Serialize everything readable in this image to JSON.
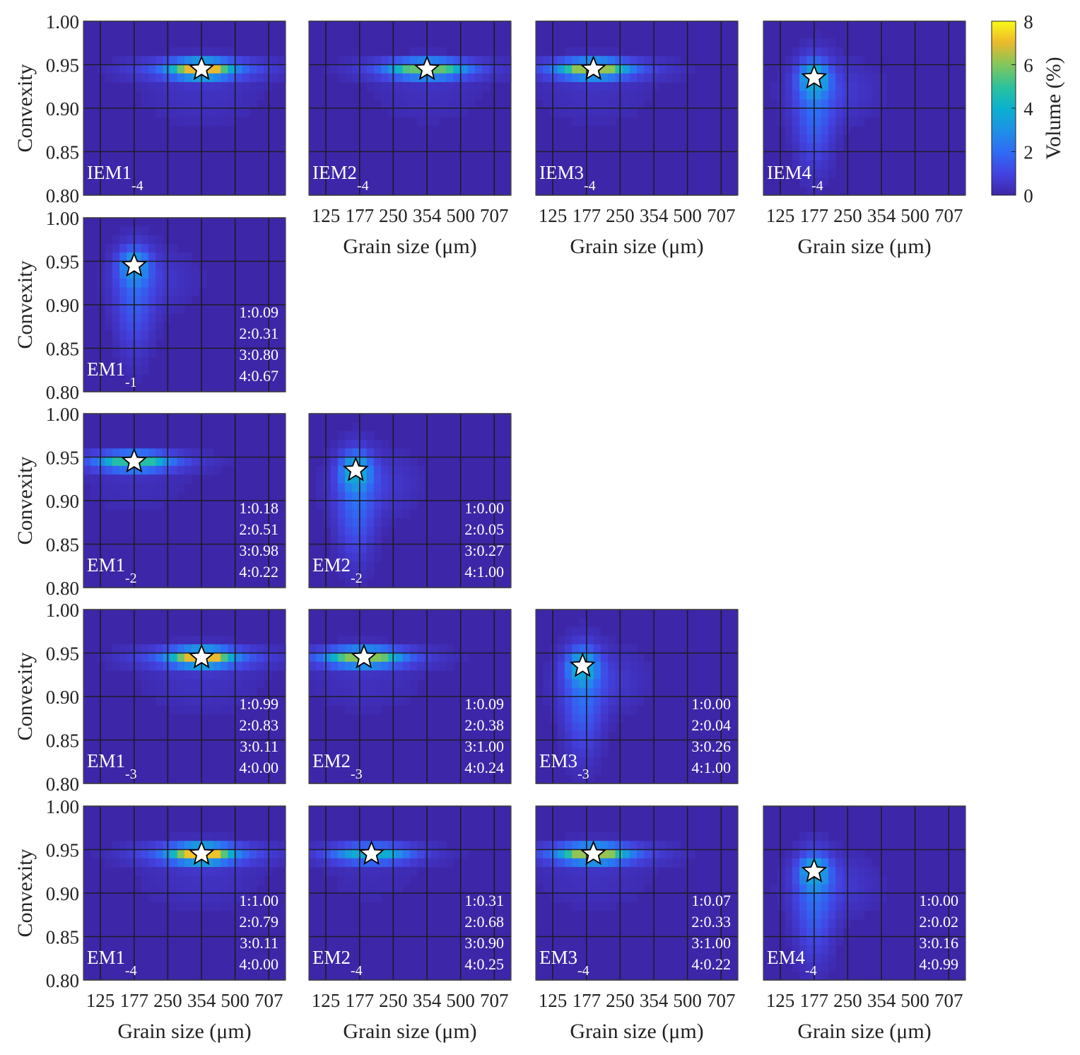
{
  "chart_data": {
    "type": "heatmap",
    "layout_note_rows": 5,
    "x_ticks": [
      "125",
      "177",
      "250",
      "354",
      "500",
      "707"
    ],
    "x_tick_values": [
      125,
      177,
      250,
      354,
      500,
      707
    ],
    "x_scale": "log",
    "xlim": [
      105,
      840
    ],
    "y_ticks": [
      "1.00",
      "0.95",
      "0.90",
      "0.85",
      "0.80"
    ],
    "y_tick_values": [
      1.0,
      0.95,
      0.9,
      0.85,
      0.8
    ],
    "ylim": [
      0.8,
      1.0
    ],
    "xlabel": "Grain size (μm)",
    "ylabel": "Convexity",
    "grid": true,
    "colormap": "parula",
    "colorbar": {
      "label": "Volume (%)",
      "range": [
        0,
        8
      ],
      "ticks": [
        "8",
        "6",
        "4",
        "2",
        "0"
      ],
      "tick_values": [
        8,
        6,
        4,
        2,
        0
      ]
    },
    "colors": {
      "background": "#3e26a8",
      "gridline": "#1c1c28",
      "star_fill": "#ffffff",
      "star_stroke": "#000000",
      "text_in_panel": "#ffffff"
    },
    "panels": [
      {
        "row": 0,
        "col": 0,
        "label": "IEM1",
        "sub": "-4",
        "peak": {
          "x": 354,
          "y": 0.945
        },
        "peak_value": 7.0,
        "shape": "horizontal",
        "spread": 0.45,
        "weights": []
      },
      {
        "row": 0,
        "col": 1,
        "label": "IEM2",
        "sub": "-4",
        "peak": {
          "x": 354,
          "y": 0.945
        },
        "peak_value": 5.6,
        "shape": "horizontal",
        "spread": 0.65,
        "weights": []
      },
      {
        "row": 0,
        "col": 2,
        "label": "IEM3",
        "sub": "-4",
        "peak": {
          "x": 190,
          "y": 0.945
        },
        "peak_value": 6.2,
        "shape": "horizontal",
        "spread": 0.55,
        "weights": []
      },
      {
        "row": 0,
        "col": 3,
        "label": "IEM4",
        "sub": "-4",
        "peak": {
          "x": 177,
          "y": 0.935
        },
        "peak_value": 3.6,
        "shape": "vertical",
        "spread": 0.5,
        "weights": []
      },
      {
        "row": 1,
        "col": 0,
        "label": "EM1",
        "sub": "-1",
        "peak": {
          "x": 177,
          "y": 0.945
        },
        "peak_value": 3.0,
        "shape": "vertical",
        "spread": 0.55,
        "weights": [
          "1:0.09",
          "2:0.31",
          "3:0.80",
          "4:0.67"
        ]
      },
      {
        "row": 2,
        "col": 0,
        "label": "EM1",
        "sub": "-2",
        "peak": {
          "x": 177,
          "y": 0.945
        },
        "peak_value": 4.8,
        "shape": "horizontal",
        "spread": 0.6,
        "weights": [
          "1:0.18",
          "2:0.51",
          "3:0.98",
          "4:0.22"
        ]
      },
      {
        "row": 2,
        "col": 1,
        "label": "EM2",
        "sub": "-2",
        "peak": {
          "x": 170,
          "y": 0.935
        },
        "peak_value": 3.6,
        "shape": "vertical",
        "spread": 0.5,
        "weights": [
          "1:0.00",
          "2:0.05",
          "3:0.27",
          "4:1.00"
        ]
      },
      {
        "row": 3,
        "col": 0,
        "label": "EM1",
        "sub": "-3",
        "peak": {
          "x": 354,
          "y": 0.945
        },
        "peak_value": 7.0,
        "shape": "horizontal",
        "spread": 0.45,
        "weights": [
          "1:0.99",
          "2:0.83",
          "3:0.11",
          "4:0.00"
        ]
      },
      {
        "row": 3,
        "col": 1,
        "label": "EM2",
        "sub": "-3",
        "peak": {
          "x": 185,
          "y": 0.945
        },
        "peak_value": 6.0,
        "shape": "horizontal",
        "spread": 0.6,
        "weights": [
          "1:0.09",
          "2:0.38",
          "3:1.00",
          "4:0.24"
        ]
      },
      {
        "row": 3,
        "col": 2,
        "label": "EM3",
        "sub": "-3",
        "peak": {
          "x": 170,
          "y": 0.935
        },
        "peak_value": 3.6,
        "shape": "vertical",
        "spread": 0.5,
        "weights": [
          "1:0.00",
          "2:0.04",
          "3:0.26",
          "4:1.00"
        ]
      },
      {
        "row": 4,
        "col": 0,
        "label": "EM1",
        "sub": "-4",
        "peak": {
          "x": 354,
          "y": 0.945
        },
        "peak_value": 7.2,
        "shape": "horizontal",
        "spread": 0.45,
        "weights": [
          "1:1.00",
          "2:0.79",
          "3:0.11",
          "4:0.00"
        ]
      },
      {
        "row": 4,
        "col": 1,
        "label": "EM2",
        "sub": "-4",
        "peak": {
          "x": 200,
          "y": 0.945
        },
        "peak_value": 3.8,
        "shape": "horizontal",
        "spread": 0.65,
        "weights": [
          "1:0.31",
          "2:0.68",
          "3:0.90",
          "4:0.25"
        ]
      },
      {
        "row": 4,
        "col": 2,
        "label": "EM3",
        "sub": "-4",
        "peak": {
          "x": 190,
          "y": 0.945
        },
        "peak_value": 6.2,
        "shape": "horizontal",
        "spread": 0.55,
        "weights": [
          "1:0.07",
          "2:0.33",
          "3:1.00",
          "4:0.22"
        ]
      },
      {
        "row": 4,
        "col": 3,
        "label": "EM4",
        "sub": "-4",
        "peak": {
          "x": 177,
          "y": 0.925
        },
        "peak_value": 3.4,
        "shape": "vertical",
        "spread": 0.5,
        "weights": [
          "1:0.00",
          "2:0.02",
          "3:0.16",
          "4:0.99"
        ]
      }
    ],
    "x_axis_shown": [
      {
        "row": 0,
        "col": 1
      },
      {
        "row": 0,
        "col": 2
      },
      {
        "row": 0,
        "col": 3
      },
      {
        "row": 4,
        "col": 0
      },
      {
        "row": 4,
        "col": 1
      },
      {
        "row": 4,
        "col": 2
      },
      {
        "row": 4,
        "col": 3
      }
    ],
    "y_axis_shown_col": 0
  }
}
